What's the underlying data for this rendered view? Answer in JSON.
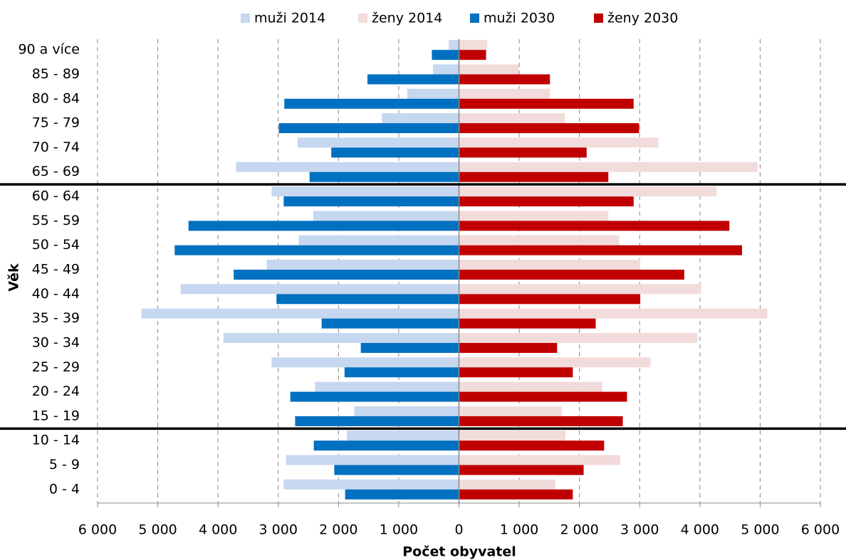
{
  "chart_data": {
    "type": "population-pyramid",
    "x_label": "Počet obyvatel",
    "y_label": "Věk",
    "categories": [
      "0 - 4",
      "5 - 9",
      "10 - 14",
      "15 - 19",
      "20 - 24",
      "25 - 29",
      "30 - 34",
      "35 - 39",
      "40 - 44",
      "45 - 49",
      "50 - 54",
      "55 - 59",
      "60 - 64",
      "65 - 69",
      "70 - 74",
      "75 - 79",
      "80 - 84",
      "85 - 89",
      "90 a více"
    ],
    "series": [
      {
        "name": "muži 2014",
        "color": "#c6d7f0",
        "values": [
          -2910,
          -2870,
          -1860,
          -1740,
          -2390,
          -3110,
          -3910,
          -5270,
          -4620,
          -3190,
          -2660,
          -2420,
          -3110,
          -3700,
          -2680,
          -1280,
          -860,
          -430,
          -170
        ]
      },
      {
        "name": "ženy 2014",
        "color": "#f2dcdb",
        "values": [
          1600,
          2680,
          1770,
          1710,
          2380,
          3180,
          3960,
          5120,
          4020,
          3010,
          2660,
          2480,
          4280,
          4960,
          3310,
          1760,
          1510,
          990,
          470
        ]
      },
      {
        "name": "muži 2030",
        "color": "#0070c0",
        "values": [
          -1890,
          -2070,
          -2410,
          -2720,
          -2800,
          -1900,
          -1630,
          -2280,
          -3030,
          -3740,
          -4720,
          -4490,
          -2910,
          -2480,
          -2120,
          -2990,
          -2900,
          -1520,
          -450
        ]
      },
      {
        "name": "ženy 2030",
        "color": "#c00000",
        "values": [
          1890,
          2070,
          2410,
          2720,
          2790,
          1890,
          1630,
          2270,
          3010,
          3740,
          4700,
          4490,
          2900,
          2480,
          2120,
          2990,
          2900,
          1510,
          450
        ]
      }
    ],
    "xlim": [
      -6000,
      6000
    ],
    "xticks": [
      {
        "value": -6000,
        "label": "6 000"
      },
      {
        "value": -5000,
        "label": "5 000"
      },
      {
        "value": -4000,
        "label": "4 000"
      },
      {
        "value": -3000,
        "label": "3 000"
      },
      {
        "value": -2000,
        "label": "2 000"
      },
      {
        "value": -1000,
        "label": "1 000"
      },
      0,
      {
        "value": 1000,
        "label": "1 000"
      },
      {
        "value": 2000,
        "label": "2 000"
      },
      {
        "value": 3000,
        "label": "3 000"
      },
      {
        "value": 4000,
        "label": "4 000"
      },
      {
        "value": 5000,
        "label": "5 000"
      },
      {
        "value": 6000,
        "label": "6 000"
      }
    ],
    "grid": true,
    "legend": "top"
  }
}
